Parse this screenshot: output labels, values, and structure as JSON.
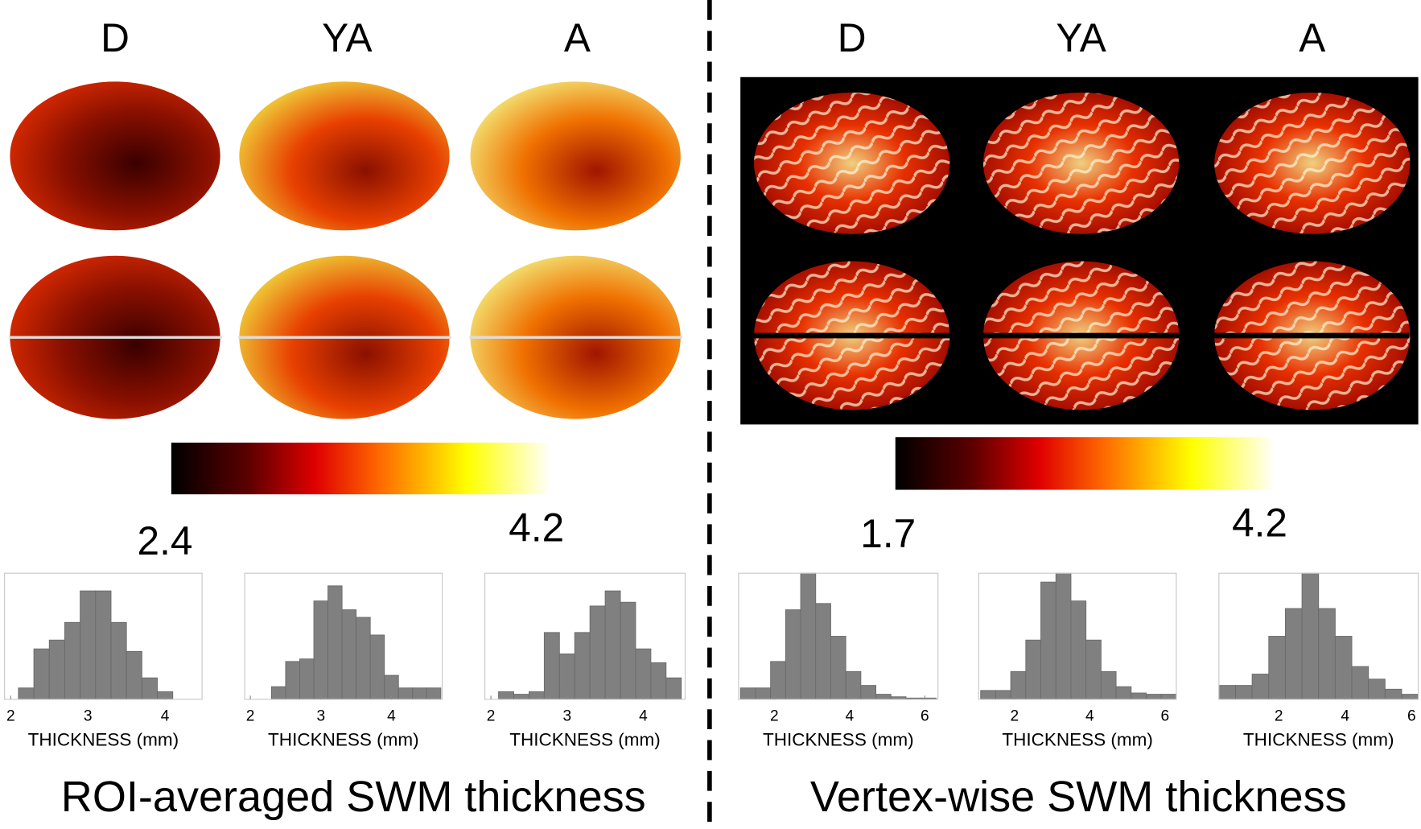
{
  "panels": [
    {
      "caption": "ROI-averaged SWM thickness",
      "column_labels": [
        "D",
        "YA",
        "A"
      ],
      "colorbar_labels": [
        2.4,
        4.2
      ]
    },
    {
      "caption": "Vertex-wise SWM thickness",
      "column_labels": [
        "D",
        "YA",
        "A"
      ],
      "colorbar_labels": [
        1.7,
        4.2
      ]
    }
  ],
  "chart_data": [
    {
      "type": "histogram",
      "xlabel": "THICKNESS (mm)",
      "color": "#808080",
      "xlim": [
        1.92,
        4.48
      ],
      "xticks": [
        2,
        3,
        4
      ],
      "ylim": [
        0,
        1
      ],
      "bins": [
        2.1,
        2.3,
        2.5,
        2.7,
        2.9,
        3.1,
        3.3,
        3.5,
        3.7,
        3.9,
        4.1
      ],
      "values": [
        0.09,
        0.4,
        0.47,
        0.61,
        0.86,
        0.86,
        0.61,
        0.38,
        0.17,
        0.06
      ]
    },
    {
      "type": "histogram",
      "xlabel": "THICKNESS (mm)",
      "color": "#808080",
      "xlim": [
        1.92,
        4.72
      ],
      "xticks": [
        2,
        3,
        4
      ],
      "ylim": [
        0,
        1
      ],
      "bins": [
        2.3,
        2.5,
        2.7,
        2.9,
        3.1,
        3.3,
        3.5,
        3.7,
        3.9,
        4.1,
        4.3,
        4.5,
        4.7
      ],
      "values": [
        0.1,
        0.3,
        0.32,
        0.78,
        0.9,
        0.71,
        0.65,
        0.51,
        0.19,
        0.09,
        0.09,
        0.09
      ]
    },
    {
      "type": "histogram",
      "xlabel": "THICKNESS (mm)",
      "color": "#808080",
      "xlim": [
        1.92,
        4.55
      ],
      "xticks": [
        2,
        3,
        4
      ],
      "ylim": [
        0,
        1
      ],
      "bins": [
        2.1,
        2.3,
        2.5,
        2.7,
        2.9,
        3.1,
        3.3,
        3.5,
        3.7,
        3.9,
        4.1,
        4.3,
        4.5
      ],
      "values": [
        0.06,
        0.04,
        0.06,
        0.53,
        0.36,
        0.53,
        0.74,
        0.86,
        0.77,
        0.4,
        0.29,
        0.17
      ]
    },
    {
      "type": "histogram",
      "xlabel": "THICKNESS (mm)",
      "color": "#808080",
      "xlim": [
        1.05,
        6.35
      ],
      "xticks": [
        2,
        4,
        6
      ],
      "ylim": [
        0,
        1
      ],
      "bins": [
        1.1,
        1.5,
        1.9,
        2.3,
        2.7,
        3.1,
        3.5,
        3.9,
        4.3,
        4.7,
        5.1,
        5.5,
        5.9,
        6.3
      ],
      "values": [
        0.09,
        0.09,
        0.3,
        0.71,
        1.0,
        0.76,
        0.5,
        0.22,
        0.11,
        0.04,
        0.02,
        0.01,
        0.01
      ]
    },
    {
      "type": "histogram",
      "xlabel": "THICKNESS (mm)",
      "color": "#808080",
      "xlim": [
        1.05,
        6.3
      ],
      "xticks": [
        2,
        4,
        6
      ],
      "ylim": [
        0,
        1
      ],
      "bins": [
        1.1,
        1.5,
        1.9,
        2.3,
        2.7,
        3.1,
        3.5,
        3.9,
        4.3,
        4.7,
        5.1,
        5.5,
        5.9,
        6.3
      ],
      "values": [
        0.07,
        0.07,
        0.22,
        0.47,
        0.93,
        1.0,
        0.78,
        0.47,
        0.22,
        0.1,
        0.05,
        0.04,
        0.04
      ]
    },
    {
      "type": "histogram",
      "xlabel": "THICKNESS (mm)",
      "color": "#808080",
      "xlim": [
        0.2,
        6.2
      ],
      "xticks": [
        2,
        4,
        6
      ],
      "ylim": [
        0,
        1
      ],
      "bins": [
        0.2,
        0.7,
        1.2,
        1.7,
        2.2,
        2.7,
        3.2,
        3.7,
        4.2,
        4.7,
        5.2,
        5.7,
        6.2
      ],
      "values": [
        0.11,
        0.11,
        0.2,
        0.5,
        0.72,
        1.0,
        0.72,
        0.5,
        0.26,
        0.16,
        0.08,
        0.04
      ]
    }
  ]
}
